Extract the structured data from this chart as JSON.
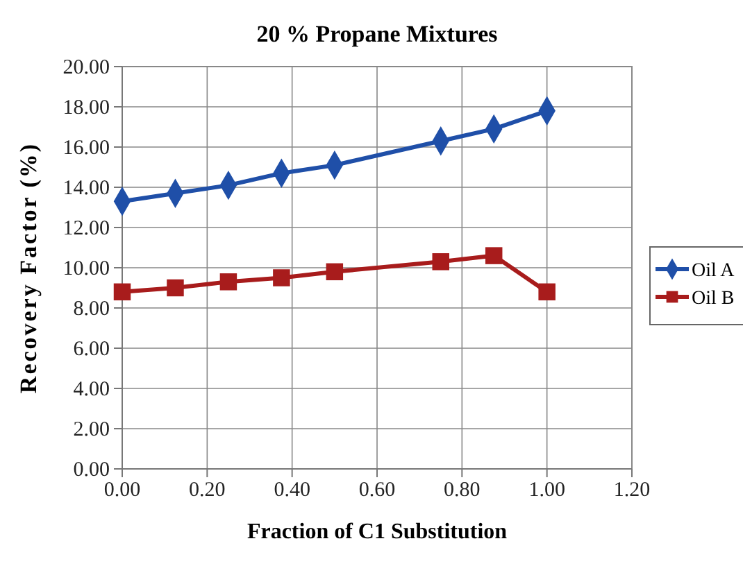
{
  "chart_data": {
    "type": "line",
    "title": "20 % Propane Mixtures",
    "xlabel": "Fraction of C1 Substitution",
    "ylabel": "Recovery Factor (%)",
    "x": [
      0,
      0.125,
      0.25,
      0.375,
      0.5,
      0.75,
      0.875,
      1.0
    ],
    "series": [
      {
        "name": "Oil A",
        "color": "#1f4fa8",
        "marker": "diamond",
        "values": [
          13.3,
          13.7,
          14.1,
          14.7,
          15.1,
          16.3,
          16.9,
          17.8
        ]
      },
      {
        "name": "Oil B",
        "color": "#a81c1c",
        "marker": "square",
        "values": [
          8.8,
          9.0,
          9.3,
          9.5,
          9.8,
          10.3,
          10.6,
          8.8
        ]
      }
    ],
    "xlim": [
      0,
      1.2
    ],
    "xticks": [
      {
        "value": 0,
        "label": "0.00"
      },
      {
        "value": 0.2,
        "label": "0.20"
      },
      {
        "value": 0.4,
        "label": "0.40"
      },
      {
        "value": 0.6,
        "label": "0.60"
      },
      {
        "value": 0.8,
        "label": "0.80"
      },
      {
        "value": 1,
        "label": "1.00"
      },
      {
        "value": 1.2,
        "label": "1.20"
      }
    ],
    "ylim": [
      0,
      20
    ],
    "yticks": [
      {
        "value": 0,
        "label": "0.00"
      },
      {
        "value": 2,
        "label": "2.00"
      },
      {
        "value": 4,
        "label": "4.00"
      },
      {
        "value": 6,
        "label": "6.00"
      },
      {
        "value": 8,
        "label": "8.00"
      },
      {
        "value": 10,
        "label": "10.00"
      },
      {
        "value": 12,
        "label": "12.00"
      },
      {
        "value": 14,
        "label": "14.00"
      },
      {
        "value": 16,
        "label": "16.00"
      },
      {
        "value": 18,
        "label": "18.00"
      },
      {
        "value": 20,
        "label": "20.00"
      }
    ],
    "grid": true,
    "legend": "right",
    "line_style": "solid"
  }
}
